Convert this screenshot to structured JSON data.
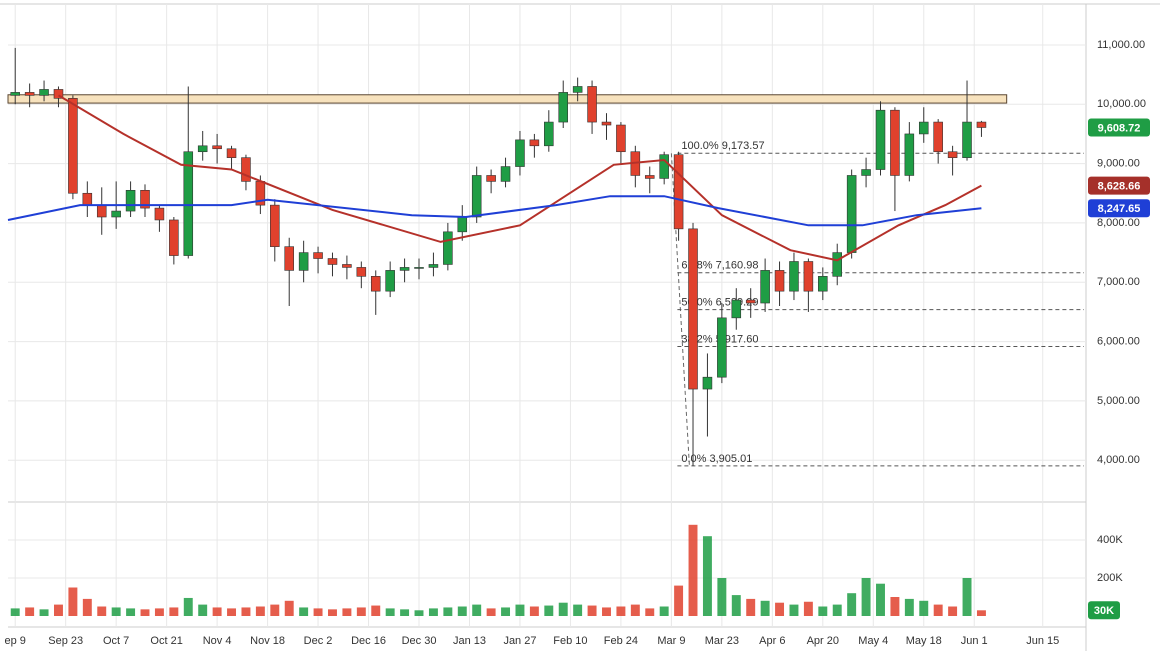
{
  "chart_data": {
    "type": "candlestick",
    "x": [
      0,
      4,
      8,
      12,
      16,
      20,
      24,
      28,
      32,
      36,
      40,
      44,
      48,
      52,
      56,
      60,
      64,
      68,
      72,
      76,
      80,
      84,
      88,
      92,
      96,
      100,
      104,
      108,
      112,
      116,
      120,
      124,
      128,
      132,
      136,
      140,
      144,
      148,
      152,
      156,
      160,
      164,
      168,
      172,
      176,
      180,
      184,
      188,
      192,
      196,
      200,
      204,
      208,
      212,
      216,
      220,
      224,
      228,
      232,
      236,
      240,
      244,
      248,
      252,
      256,
      260,
      264,
      268
    ],
    "open": [
      10150,
      10200,
      10150,
      10250,
      10100,
      8500,
      8300,
      8100,
      8200,
      8550,
      8250,
      8050,
      7450,
      9200,
      9300,
      9250,
      9100,
      8700,
      8300,
      7600,
      7200,
      7500,
      7400,
      7300,
      7250,
      7100,
      6850,
      7200,
      7250,
      7250,
      7300,
      7850,
      8100,
      8800,
      8700,
      8950,
      9400,
      9300,
      9700,
      10200,
      10300,
      9700,
      9650,
      9200,
      8800,
      8750,
      9150,
      7900,
      5200,
      5400,
      6400,
      6700,
      6650,
      7200,
      6850,
      7350,
      6850,
      7100,
      7500,
      8800,
      8900,
      9900,
      8800,
      9500,
      9700,
      9200,
      9100,
      9700
    ],
    "high": [
      10950,
      10350,
      10400,
      10300,
      10150,
      8700,
      8600,
      8700,
      8700,
      8650,
      8300,
      8100,
      10300,
      9550,
      9500,
      9300,
      9150,
      8800,
      8400,
      7750,
      7700,
      7600,
      7500,
      7450,
      7350,
      7200,
      7350,
      7400,
      7400,
      7500,
      8000,
      8300,
      8950,
      8900,
      9100,
      9550,
      9500,
      9900,
      10400,
      10450,
      10400,
      9850,
      9700,
      9300,
      8950,
      9200,
      9200,
      8000,
      5800,
      6650,
      6900,
      6900,
      7400,
      7350,
      7500,
      7400,
      7250,
      7650,
      8900,
      9100,
      10050,
      9950,
      9700,
      9950,
      9750,
      9300,
      10400,
      9720
    ],
    "low": [
      10000,
      9950,
      10050,
      9950,
      8400,
      8100,
      7800,
      7900,
      8100,
      8100,
      7850,
      7300,
      7400,
      9050,
      9000,
      8900,
      8550,
      8150,
      7350,
      6600,
      7000,
      7150,
      7100,
      7050,
      6900,
      6450,
      6750,
      7000,
      7050,
      7100,
      7200,
      7700,
      8000,
      8500,
      8600,
      8800,
      9100,
      9200,
      9600,
      10050,
      9500,
      9400,
      9000,
      8600,
      8500,
      8650,
      7700,
      3905.01,
      4400,
      5300,
      6200,
      6400,
      6500,
      6600,
      6700,
      6500,
      6700,
      6950,
      7400,
      8600,
      8800,
      8200,
      8700,
      9350,
      9000,
      8800,
      9050,
      9450
    ],
    "close": [
      10200,
      10150,
      10250,
      10100,
      8500,
      8300,
      8100,
      8200,
      8550,
      8250,
      8050,
      7450,
      9200,
      9300,
      9250,
      9100,
      8700,
      8300,
      7600,
      7200,
      7500,
      7400,
      7300,
      7250,
      7100,
      6850,
      7200,
      7250,
      7250,
      7300,
      7850,
      8100,
      8800,
      8700,
      8950,
      9400,
      9300,
      9700,
      10200,
      10300,
      9700,
      9650,
      9200,
      8800,
      8750,
      9150,
      7900,
      5200,
      5400,
      6400,
      6700,
      6650,
      7200,
      6850,
      7350,
      6850,
      7100,
      7500,
      8800,
      8900,
      9900,
      8800,
      9500,
      9700,
      9200,
      9100,
      9700,
      9608.72
    ],
    "volume": [
      40000,
      45000,
      35000,
      60000,
      150000,
      90000,
      50000,
      45000,
      40000,
      35000,
      40000,
      45000,
      95000,
      60000,
      45000,
      40000,
      45000,
      50000,
      60000,
      80000,
      45000,
      40000,
      35000,
      40000,
      45000,
      55000,
      40000,
      35000,
      30000,
      40000,
      45000,
      50000,
      60000,
      40000,
      45000,
      60000,
      50000,
      55000,
      70000,
      60000,
      55000,
      45000,
      50000,
      60000,
      40000,
      50000,
      160000,
      480000,
      420000,
      200000,
      110000,
      90000,
      80000,
      70000,
      60000,
      75000,
      50000,
      60000,
      120000,
      200000,
      170000,
      100000,
      90000,
      80000,
      60000,
      50000,
      200000,
      30000
    ],
    "up_color": "#1f9d45",
    "down_color": "#e0412d",
    "xlim": [
      -2,
      297
    ],
    "xticks": [
      {
        "value": 0,
        "label": "ep 9"
      },
      {
        "value": 14,
        "label": "Sep 23"
      },
      {
        "value": 28,
        "label": "Oct 7"
      },
      {
        "value": 42,
        "label": "Oct 21"
      },
      {
        "value": 56,
        "label": "Nov 4"
      },
      {
        "value": 70,
        "label": "Nov 18"
      },
      {
        "value": 84,
        "label": "Dec 2"
      },
      {
        "value": 98,
        "label": "Dec 16"
      },
      {
        "value": 112,
        "label": "Dec 30"
      },
      {
        "value": 126,
        "label": "Jan 13"
      },
      {
        "value": 140,
        "label": "Jan 27"
      },
      {
        "value": 154,
        "label": "Feb 10"
      },
      {
        "value": 168,
        "label": "Feb 24"
      },
      {
        "value": 182,
        "label": "Mar 9"
      },
      {
        "value": 196,
        "label": "Mar 23"
      },
      {
        "value": 210,
        "label": "Apr 6"
      },
      {
        "value": 224,
        "label": "Apr 20"
      },
      {
        "value": 238,
        "label": "May 4"
      },
      {
        "value": 252,
        "label": "May 18"
      },
      {
        "value": 266,
        "label": "Jun 1"
      },
      {
        "value": 285,
        "label": "Jun 15"
      }
    ],
    "ylim": [
      3330,
      11690
    ],
    "yticks": [
      {
        "value": 4000,
        "label": "4,000.00"
      },
      {
        "value": 5000,
        "label": "5,000.00"
      },
      {
        "value": 6000,
        "label": "6,000.00"
      },
      {
        "value": 7000,
        "label": "7,000.00"
      },
      {
        "value": 8000,
        "label": "8,000.00"
      },
      {
        "value": 9000,
        "label": "9,000.00"
      },
      {
        "value": 10000,
        "label": "10,000.00"
      },
      {
        "value": 11000,
        "label": "11,000.00"
      }
    ],
    "volume_ylim": [
      0,
      600000
    ],
    "volume_yticks": [
      {
        "value": 200000,
        "label": "200K"
      },
      {
        "value": 400000,
        "label": "400K"
      }
    ],
    "grid": true,
    "moving_averages": [
      {
        "color": "#b5312a",
        "x": [
          12,
          30,
          46,
          60,
          88,
          118,
          140,
          166,
          180,
          196,
          215,
          228,
          245,
          258,
          268
        ],
        "values": [
          10150,
          9500,
          8980,
          8900,
          8220,
          7680,
          7960,
          8980,
          9060,
          8130,
          7540,
          7370,
          7960,
          8300,
          8628.66
        ]
      },
      {
        "color": "#1f3fd6",
        "x": [
          -2,
          18,
          60,
          70,
          110,
          125,
          150,
          165,
          180,
          195,
          220,
          235,
          250,
          268
        ],
        "values": [
          8050,
          8300,
          8300,
          8390,
          8130,
          8100,
          8300,
          8450,
          8450,
          8250,
          7960,
          7960,
          8130,
          8247.65
        ]
      }
    ],
    "price_labels": [
      {
        "value": 9608.72,
        "label": "9,608.72",
        "color": "#1f9d45"
      },
      {
        "value": 8628.66,
        "label": "8,628.66",
        "color": "#a5302a"
      },
      {
        "value": 8247.65,
        "label": "8,247.65",
        "color": "#1f3fd6"
      }
    ],
    "volume_label": {
      "value": 30000,
      "label": "30K",
      "color": "#1f9d45"
    },
    "zone": {
      "ylim": [
        10020,
        10160
      ],
      "xlim": [
        -2,
        275
      ],
      "color": "#f7e2bd"
    },
    "fib_x": [
      182,
      187
    ],
    "fib_levels": [
      {
        "value": 9173.57,
        "label": "100.0% 9,173.57"
      },
      {
        "value": 7160.98,
        "label": "61.8% 7,160.98"
      },
      {
        "value": 6539.29,
        "label": "50.0% 6,539.29"
      },
      {
        "value": 5917.6,
        "label": "38.2% 5,917.60"
      },
      {
        "value": 3905.01,
        "label": "0.0% 3,905.01"
      }
    ]
  }
}
